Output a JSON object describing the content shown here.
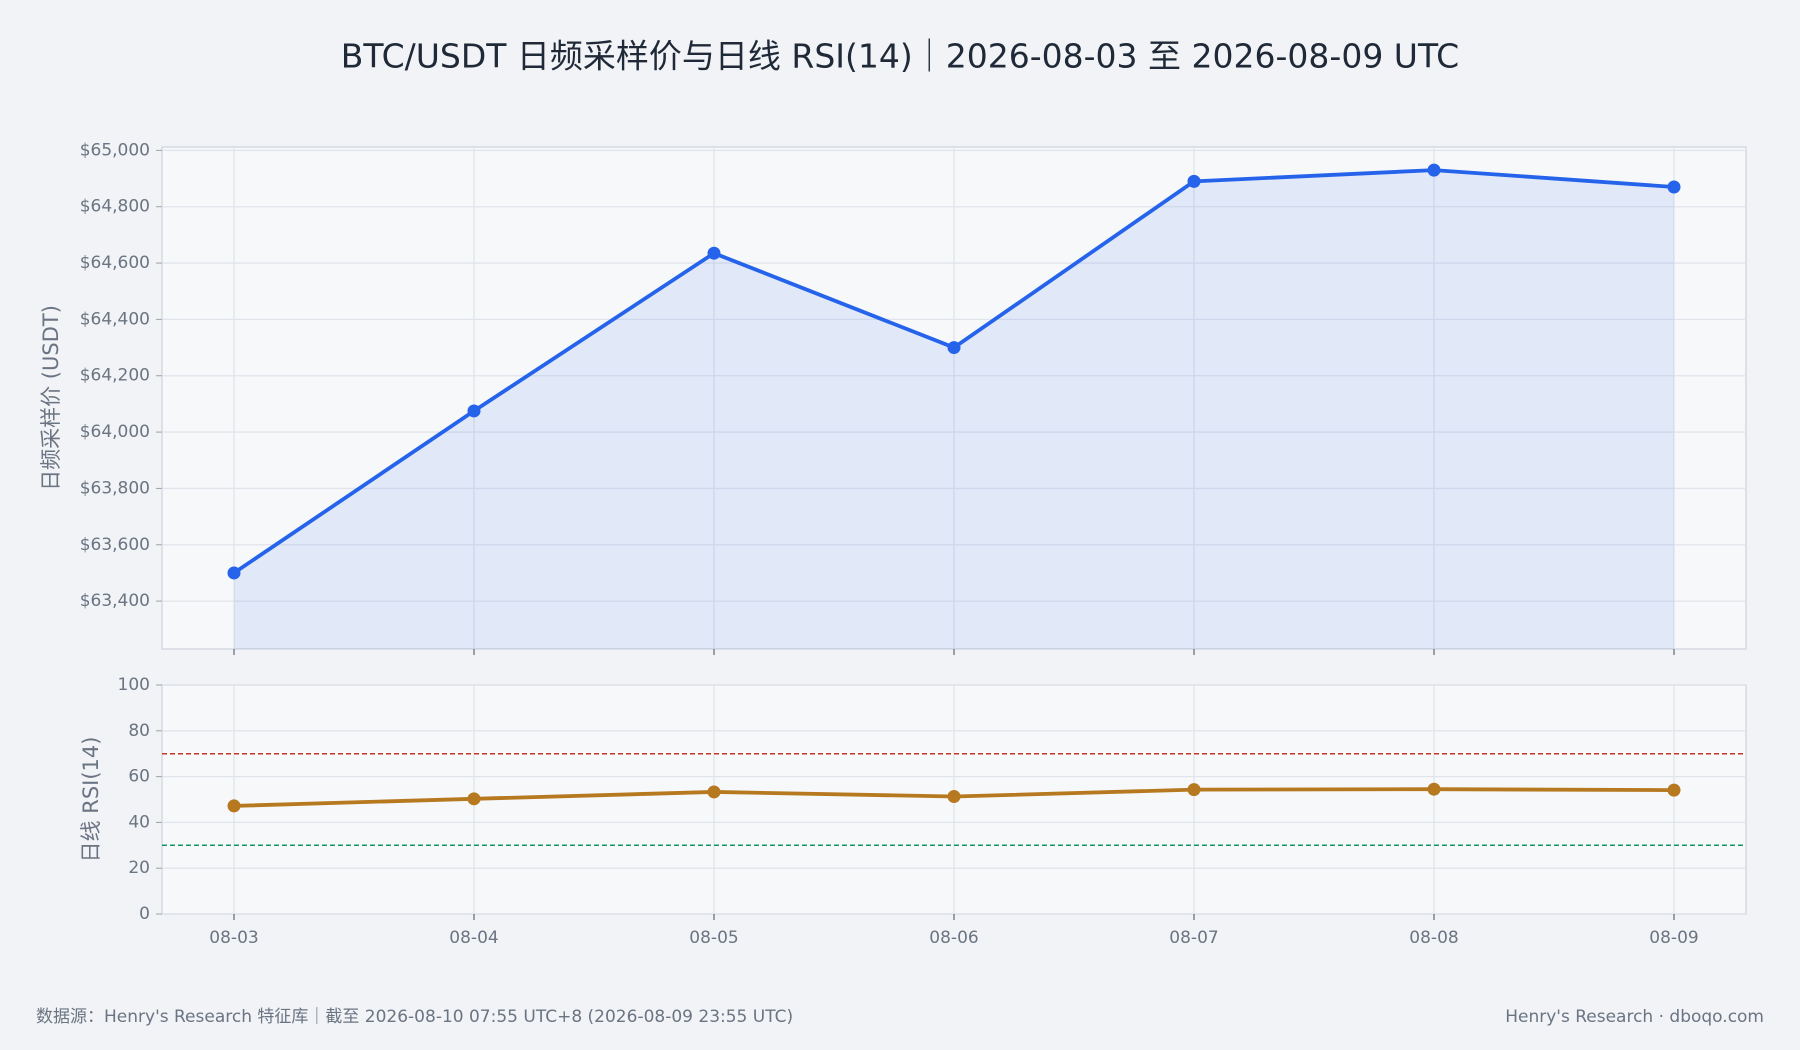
{
  "title": "BTC/USDT 日频采样价与日线 RSI(14)｜2026-08-03 至 2026-08-09 UTC",
  "chart_data": [
    {
      "type": "line",
      "ylabel": "日频采样价 (USDT)",
      "color": "#2563eb",
      "fill": true,
      "grid": true,
      "values": [
        63500,
        64075,
        64635,
        64300,
        64890,
        64930,
        64870
      ],
      "ylim": [
        63230,
        65012
      ],
      "yticks": [
        {
          "value": 63400,
          "label": "$63,400"
        },
        {
          "value": 63600,
          "label": "$63,600"
        },
        {
          "value": 63800,
          "label": "$63,800"
        },
        {
          "value": 64000,
          "label": "$64,000"
        },
        {
          "value": 64200,
          "label": "$64,200"
        },
        {
          "value": 64400,
          "label": "$64,400"
        },
        {
          "value": 64600,
          "label": "$64,600"
        },
        {
          "value": 64800,
          "label": "$64,800"
        },
        {
          "value": 65000,
          "label": "$65,000"
        }
      ]
    },
    {
      "type": "line",
      "ylabel": "日线 RSI(14)",
      "color": "#b7791f",
      "fill": false,
      "grid": true,
      "categories": [
        "08-03",
        "08-04",
        "08-05",
        "08-06",
        "08-07",
        "08-08",
        "08-09"
      ],
      "values": [
        47.2,
        50.3,
        53.3,
        51.3,
        54.3,
        54.5,
        54.1
      ],
      "ylim": [
        0,
        100
      ],
      "yticks": [
        0,
        20,
        40,
        60,
        80,
        100
      ],
      "hlines": [
        {
          "value": 70,
          "color": "#c0392b"
        },
        {
          "value": 30,
          "color": "#15935f"
        }
      ]
    }
  ],
  "footer": {
    "source": "数据源：Henry's Research 特征库｜截至 2026-08-10 07:55 UTC+8 (2026-08-09 23:55 UTC)",
    "brand": "Henry's Research · dboqo.com"
  }
}
